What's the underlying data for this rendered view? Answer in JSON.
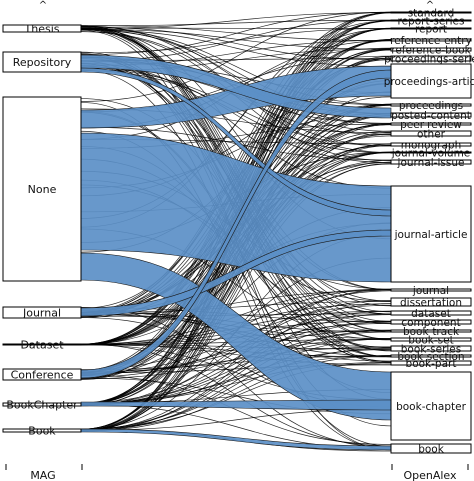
{
  "axes": {
    "left_label": "MAG",
    "right_label": "OpenAlex",
    "left_caret": "^",
    "right_caret": "^"
  },
  "colors": {
    "flow_fill": "#5b8fc7",
    "node_stroke": "#000000",
    "line": "#000000"
  },
  "left_nodes": [
    {
      "id": "thesis",
      "label": "Thesis"
    },
    {
      "id": "repository",
      "label": "Repository"
    },
    {
      "id": "none",
      "label": "None"
    },
    {
      "id": "journal",
      "label": "Journal"
    },
    {
      "id": "dataset",
      "label": "Dataset"
    },
    {
      "id": "conference",
      "label": "Conference"
    },
    {
      "id": "bookchapter",
      "label": "BookChapter"
    },
    {
      "id": "book",
      "label": "Book"
    }
  ],
  "right_nodes": [
    {
      "id": "standard",
      "label": "standard"
    },
    {
      "id": "report-series",
      "label": "report-series"
    },
    {
      "id": "report",
      "label": "report"
    },
    {
      "id": "reference-entry",
      "label": "reference-entry"
    },
    {
      "id": "reference-book",
      "label": "reference-book"
    },
    {
      "id": "proceedings-series",
      "label": "proceedings-serie"
    },
    {
      "id": "proceedings-article",
      "label": "proceedings-articl"
    },
    {
      "id": "proceedings",
      "label": "proceedings"
    },
    {
      "id": "posted-content",
      "label": "posted-content"
    },
    {
      "id": "peer-review",
      "label": "peer-review"
    },
    {
      "id": "other",
      "label": "other"
    },
    {
      "id": "monograph",
      "label": "monograph"
    },
    {
      "id": "journal-volume",
      "label": "journal-volume"
    },
    {
      "id": "journal-issue",
      "label": "journal-issue"
    },
    {
      "id": "journal-article",
      "label": "journal-article"
    },
    {
      "id": "journal",
      "label": "journal"
    },
    {
      "id": "dissertation",
      "label": "dissertation"
    },
    {
      "id": "dataset",
      "label": "dataset"
    },
    {
      "id": "component",
      "label": "component"
    },
    {
      "id": "book-track",
      "label": "book-track"
    },
    {
      "id": "book-set",
      "label": "book-set"
    },
    {
      "id": "book-series",
      "label": "book-series"
    },
    {
      "id": "book-section",
      "label": "book-section"
    },
    {
      "id": "book-part",
      "label": "book-part"
    },
    {
      "id": "book-chapter",
      "label": "book-chapter"
    },
    {
      "id": "book",
      "label": "book"
    }
  ],
  "major_flows": [
    {
      "from": "none",
      "to": "journal-article"
    },
    {
      "from": "none",
      "to": "proceedings-article"
    },
    {
      "from": "none",
      "to": "book-chapter"
    },
    {
      "from": "repository",
      "to": "posted-content"
    },
    {
      "from": "repository",
      "to": "journal-article"
    },
    {
      "from": "journal",
      "to": "journal-article"
    },
    {
      "from": "conference",
      "to": "proceedings-article"
    },
    {
      "from": "bookchapter",
      "to": "book-chapter"
    },
    {
      "from": "book",
      "to": "book"
    }
  ]
}
